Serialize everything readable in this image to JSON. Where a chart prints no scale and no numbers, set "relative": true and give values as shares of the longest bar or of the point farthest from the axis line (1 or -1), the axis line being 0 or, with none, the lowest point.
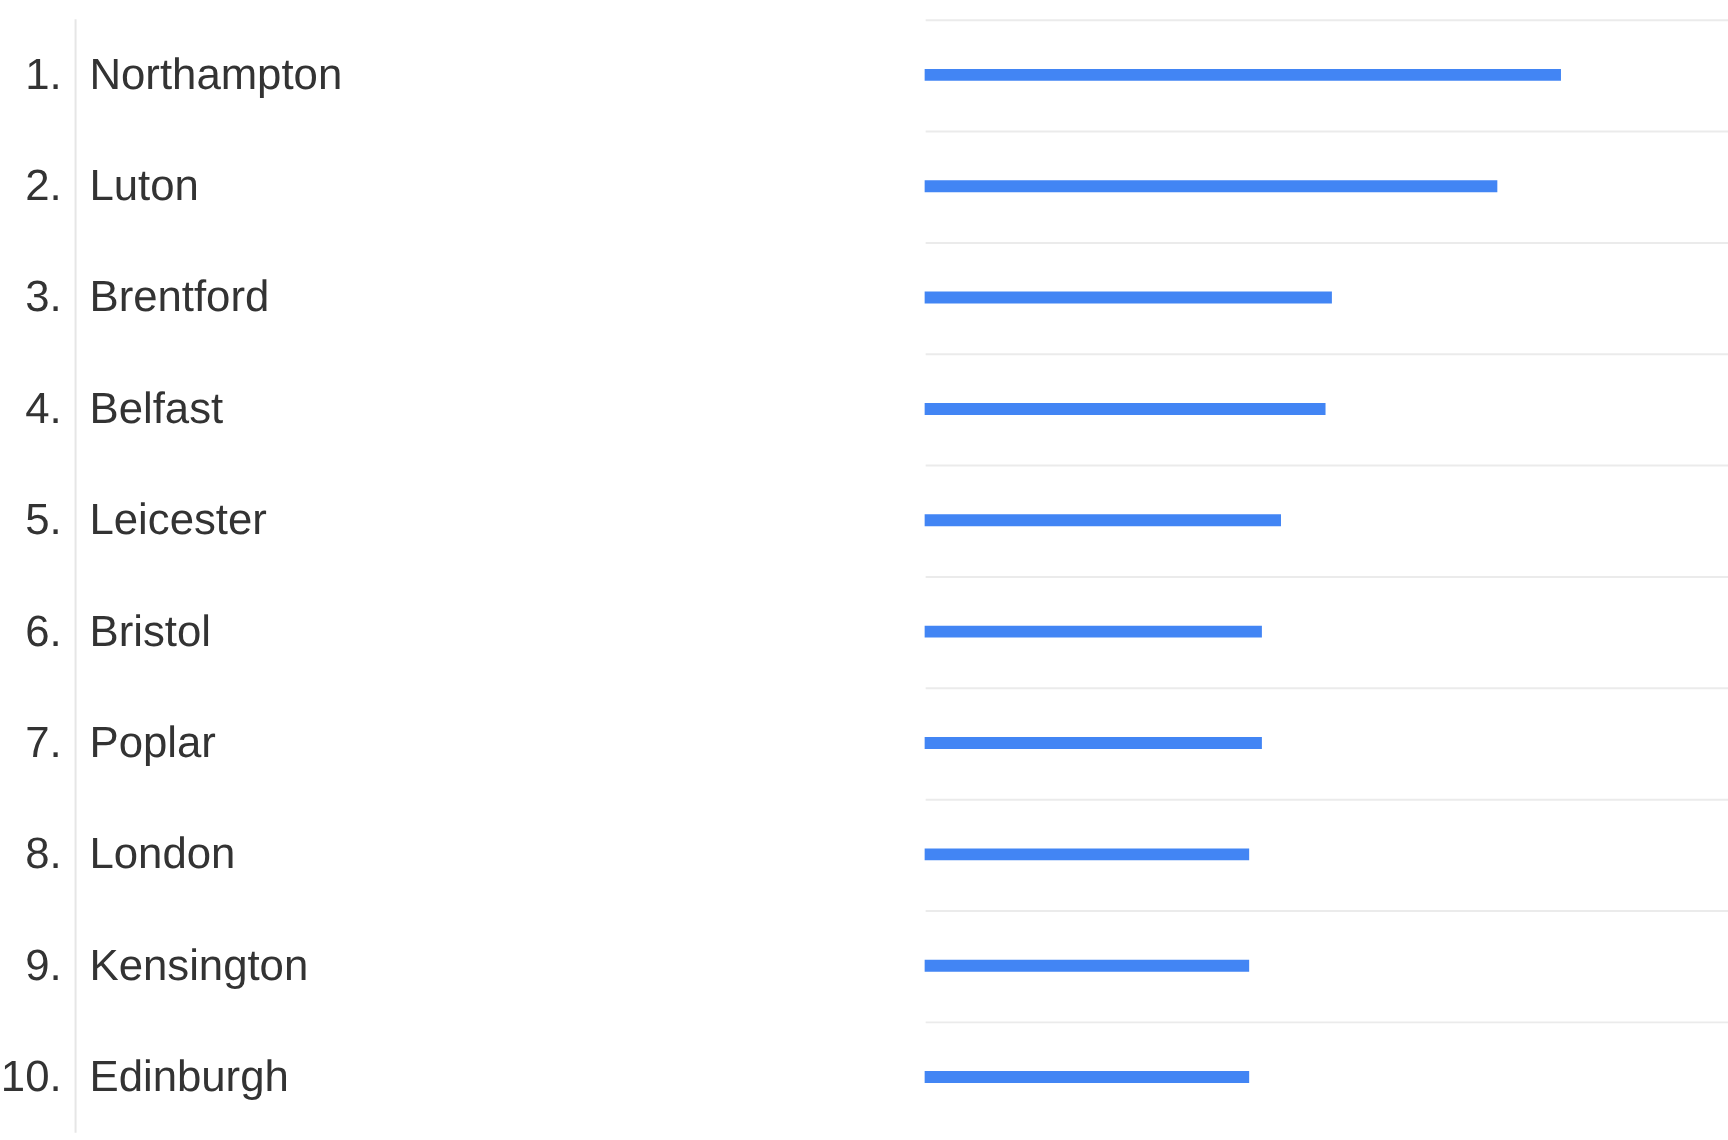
{
  "chart_data": {
    "type": "bar",
    "orientation": "horizontal",
    "relative": true,
    "grid": "y",
    "categories": [
      "Northampton",
      "Luton",
      "Brentford",
      "Belfast",
      "Leicester",
      "Bristol",
      "Poplar",
      "London",
      "Kensington",
      "Edinburgh"
    ],
    "values": [
      1,
      0.9,
      0.64,
      0.63,
      0.56,
      0.53,
      0.53,
      0.51,
      0.51,
      0.51
    ],
    "color": "#4285f4",
    "annotations": [
      "1.",
      "2.",
      "3.",
      "4.",
      "5.",
      "6.",
      "7.",
      "8.",
      "9.",
      "10."
    ]
  }
}
